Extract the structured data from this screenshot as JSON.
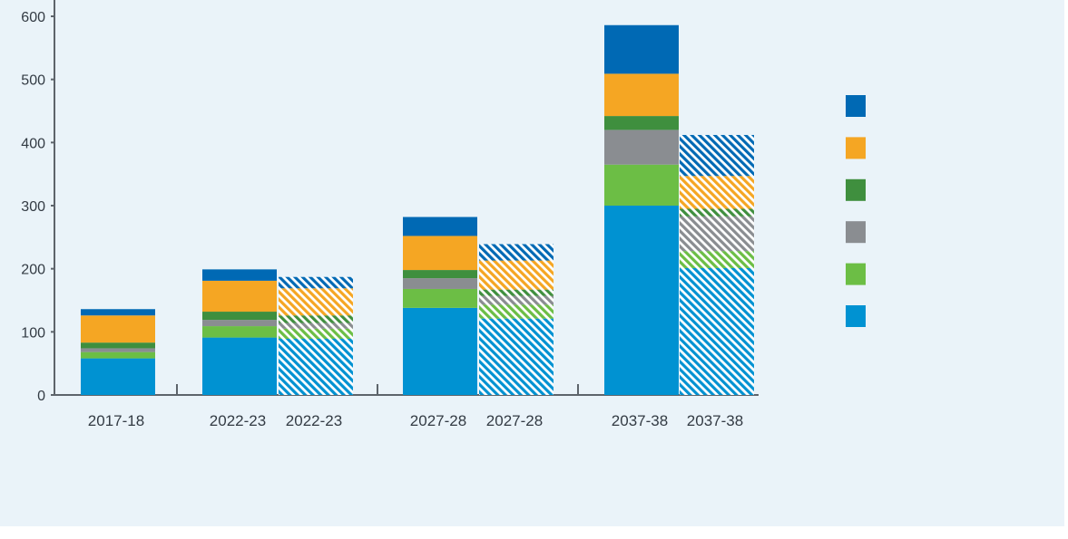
{
  "chart_data": {
    "type": "bar",
    "stacked": true,
    "title": "",
    "xlabel": "",
    "ylabel": "",
    "ylim": [
      0,
      600
    ],
    "yticks": [
      0,
      100,
      200,
      300,
      400,
      500,
      600
    ],
    "categories": [
      "2017-18",
      "2022-23",
      "2022-23",
      "2027-28",
      "2027-28",
      "2037-38",
      "2037-38"
    ],
    "hatched": [
      false,
      false,
      true,
      false,
      true,
      false,
      true
    ],
    "series": [
      {
        "name": "",
        "color": "#0092d2",
        "values": [
          58,
          91,
          89,
          138,
          121,
          300,
          201
        ]
      },
      {
        "name": "",
        "color": "#6cbe45",
        "values": [
          10,
          18,
          16,
          30,
          22,
          65,
          27
        ]
      },
      {
        "name": "",
        "color": "#8a8d91",
        "values": [
          6,
          10,
          9,
          17,
          14,
          55,
          55
        ]
      },
      {
        "name": "",
        "color": "#3f8f3e",
        "values": [
          9,
          13,
          12,
          13,
          10,
          22,
          12
        ]
      },
      {
        "name": "",
        "color": "#f5a623",
        "values": [
          43,
          49,
          43,
          54,
          46,
          67,
          52
        ]
      },
      {
        "name": "",
        "color": "#0069b4",
        "values": [
          10,
          18,
          18,
          30,
          26,
          77,
          65
        ]
      }
    ],
    "legend": {
      "position": "right",
      "entries": [
        "",
        "",
        "",
        "",
        "",
        ""
      ]
    }
  }
}
